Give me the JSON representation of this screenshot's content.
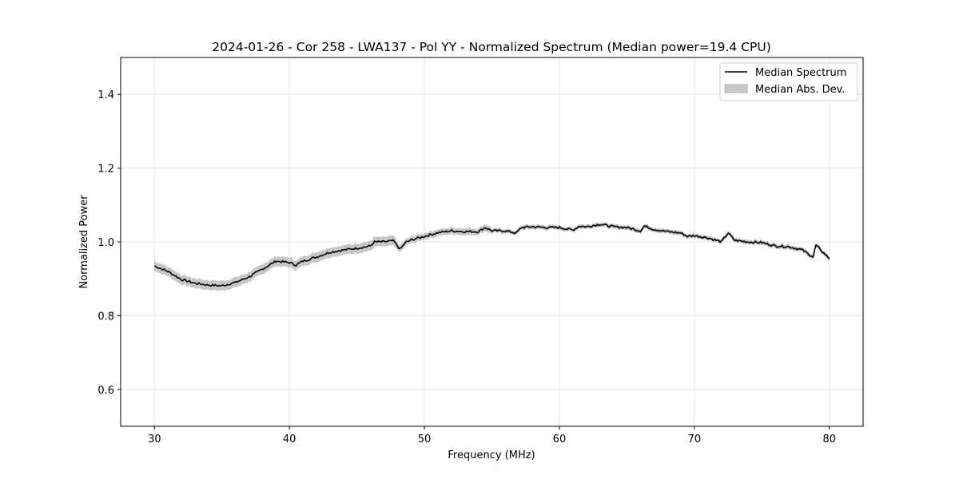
{
  "chart_data": {
    "type": "line",
    "title": "2024-01-26 - Cor 258 - LWA137 - Pol YY - Normalized Spectrum (Median power=19.4 CPU)",
    "xlabel": "Frequency (MHz)",
    "ylabel": "Normalized Power",
    "xlim": [
      27.5,
      82.5
    ],
    "ylim": [
      0.5,
      1.5
    ],
    "xticks": [
      30,
      40,
      50,
      60,
      70,
      80
    ],
    "yticks": [
      0.6,
      0.8,
      1.0,
      1.2,
      1.4
    ],
    "xtick_labels": [
      "30",
      "40",
      "50",
      "60",
      "70",
      "80"
    ],
    "ytick_labels": [
      "0.6",
      "0.8",
      "1.0",
      "1.2",
      "1.4"
    ],
    "grid": true,
    "legend": {
      "placement": "top-right",
      "entries": [
        "Median Spectrum",
        "Median Abs. Dev."
      ]
    },
    "series": [
      {
        "name": "Median Spectrum",
        "color": "#000000",
        "x": [
          30,
          31,
          32,
          33,
          34,
          35,
          36,
          37,
          38,
          39,
          40,
          40.5,
          41,
          42,
          43,
          44,
          45,
          46,
          46.3,
          47,
          47.7,
          48.2,
          48.6,
          49,
          50,
          51,
          52,
          53,
          54,
          54.5,
          55,
          56,
          56.8,
          57.2,
          58,
          59,
          60,
          61,
          61.5,
          62,
          63,
          64,
          65,
          66,
          66.3,
          67,
          68,
          69,
          69.5,
          70,
          71,
          72,
          72.5,
          73,
          74,
          75,
          76,
          77,
          78,
          78.8,
          79,
          80
        ],
        "y": [
          0.935,
          0.92,
          0.898,
          0.888,
          0.883,
          0.881,
          0.89,
          0.905,
          0.926,
          0.948,
          0.944,
          0.937,
          0.948,
          0.959,
          0.972,
          0.978,
          0.983,
          0.989,
          1.0,
          1.0,
          1.003,
          0.98,
          0.998,
          1.005,
          1.015,
          1.025,
          1.03,
          1.028,
          1.028,
          1.039,
          1.03,
          1.03,
          1.024,
          1.039,
          1.041,
          1.039,
          1.039,
          1.032,
          1.043,
          1.041,
          1.048,
          1.041,
          1.039,
          1.03,
          1.043,
          1.034,
          1.028,
          1.024,
          1.015,
          1.017,
          1.011,
          1.0,
          1.024,
          1.004,
          1.0,
          0.998,
          0.989,
          0.987,
          0.978,
          0.959,
          0.991,
          0.955
        ]
      },
      {
        "name": "Median Abs. Dev.",
        "color": "#c8c8c8",
        "mad_low_freq": 0.012,
        "mad_mid_freq": 0.008,
        "mad_high_freq": 0.005
      }
    ]
  }
}
